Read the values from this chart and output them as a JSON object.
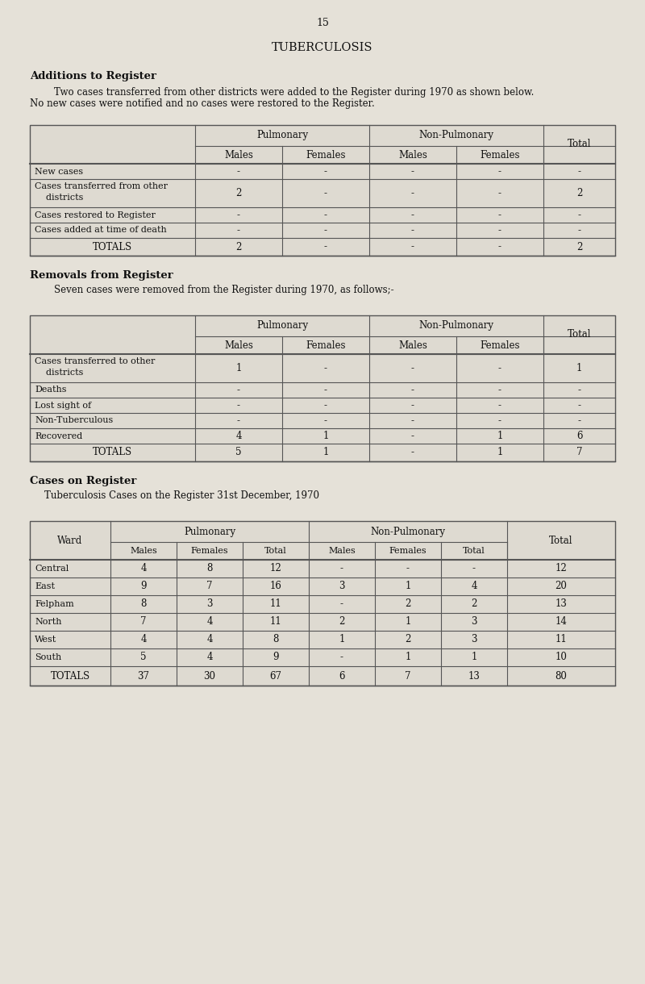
{
  "page_number": "15",
  "bg_color": "#e5e1d8",
  "title": "TUBERCULOSIS",
  "section1_heading": "Additions to Register",
  "section1_line1": "        Two cases transferred from other districts were added to the Register during 1970 as shown below.",
  "section1_line2": "No new cases were notified and no cases were restored to the Register.",
  "table1": {
    "rows": [
      {
        "label1": "New cases",
        "label2": "",
        "v": [
          "-",
          "-",
          "-",
          "-",
          "-"
        ]
      },
      {
        "label1": "Cases transferred from other",
        "label2": "    districts",
        "v": [
          "2",
          "-",
          "-",
          "-",
          "2"
        ]
      },
      {
        "label1": "Cases restored to Register",
        "label2": "",
        "v": [
          "-",
          "-",
          "-",
          "-",
          "-"
        ]
      },
      {
        "label1": "Cases added at time of death",
        "label2": "",
        "v": [
          "-",
          "-",
          "-",
          "-",
          "-"
        ]
      }
    ],
    "totals_values": [
      "2",
      "-",
      "-",
      "-",
      "2"
    ]
  },
  "section2_heading": "Removals from Register",
  "section2_line1": "        Seven cases were removed from the Register during 1970, as follows;-",
  "table2": {
    "rows": [
      {
        "label1": "Cases transferred to other",
        "label2": "    districts",
        "v": [
          "1",
          "-",
          "-",
          "-",
          "1"
        ]
      },
      {
        "label1": "Deaths",
        "label2": "",
        "v": [
          "-",
          "-",
          "-",
          "-",
          "-"
        ]
      },
      {
        "label1": "Lost sight of",
        "label2": "",
        "v": [
          "-",
          "-",
          "-",
          "-",
          "-"
        ]
      },
      {
        "label1": "Non-Tuberculous",
        "label2": "",
        "v": [
          "-",
          "-",
          "-",
          "-",
          "-"
        ]
      },
      {
        "label1": "Recovered",
        "label2": "",
        "v": [
          "4",
          "1",
          "-",
          "1",
          "6"
        ]
      }
    ],
    "totals_values": [
      "5",
      "1",
      "-",
      "1",
      "7"
    ]
  },
  "section3_heading": "Cases on Register",
  "section3_subtitle": "Tuberculosis Cases on the Register 31st December, 1970",
  "table3": {
    "rows": [
      {
        "ward": "Central",
        "v": [
          "4",
          "8",
          "12",
          "-",
          "-",
          "-",
          "12"
        ]
      },
      {
        "ward": "East",
        "v": [
          "9",
          "7",
          "16",
          "3",
          "1",
          "4",
          "20"
        ]
      },
      {
        "ward": "Felpham",
        "v": [
          "8",
          "3",
          "11",
          "-",
          "2",
          "2",
          "13"
        ]
      },
      {
        "ward": "North",
        "v": [
          "7",
          "4",
          "11",
          "2",
          "1",
          "3",
          "14"
        ]
      },
      {
        "ward": "West",
        "v": [
          "4",
          "4",
          "8",
          "1",
          "2",
          "3",
          "11"
        ]
      },
      {
        "ward": "South",
        "v": [
          "5",
          "4",
          "9",
          "-",
          "1",
          "1",
          "10"
        ]
      }
    ],
    "totals_values": [
      "37",
      "30",
      "67",
      "6",
      "7",
      "13",
      "80"
    ]
  },
  "font_family": "DejaVu Serif",
  "text_color": "#111111",
  "line_color": "#555555",
  "cell_bg": "#dedad1",
  "white_bg": "#f0ede6"
}
